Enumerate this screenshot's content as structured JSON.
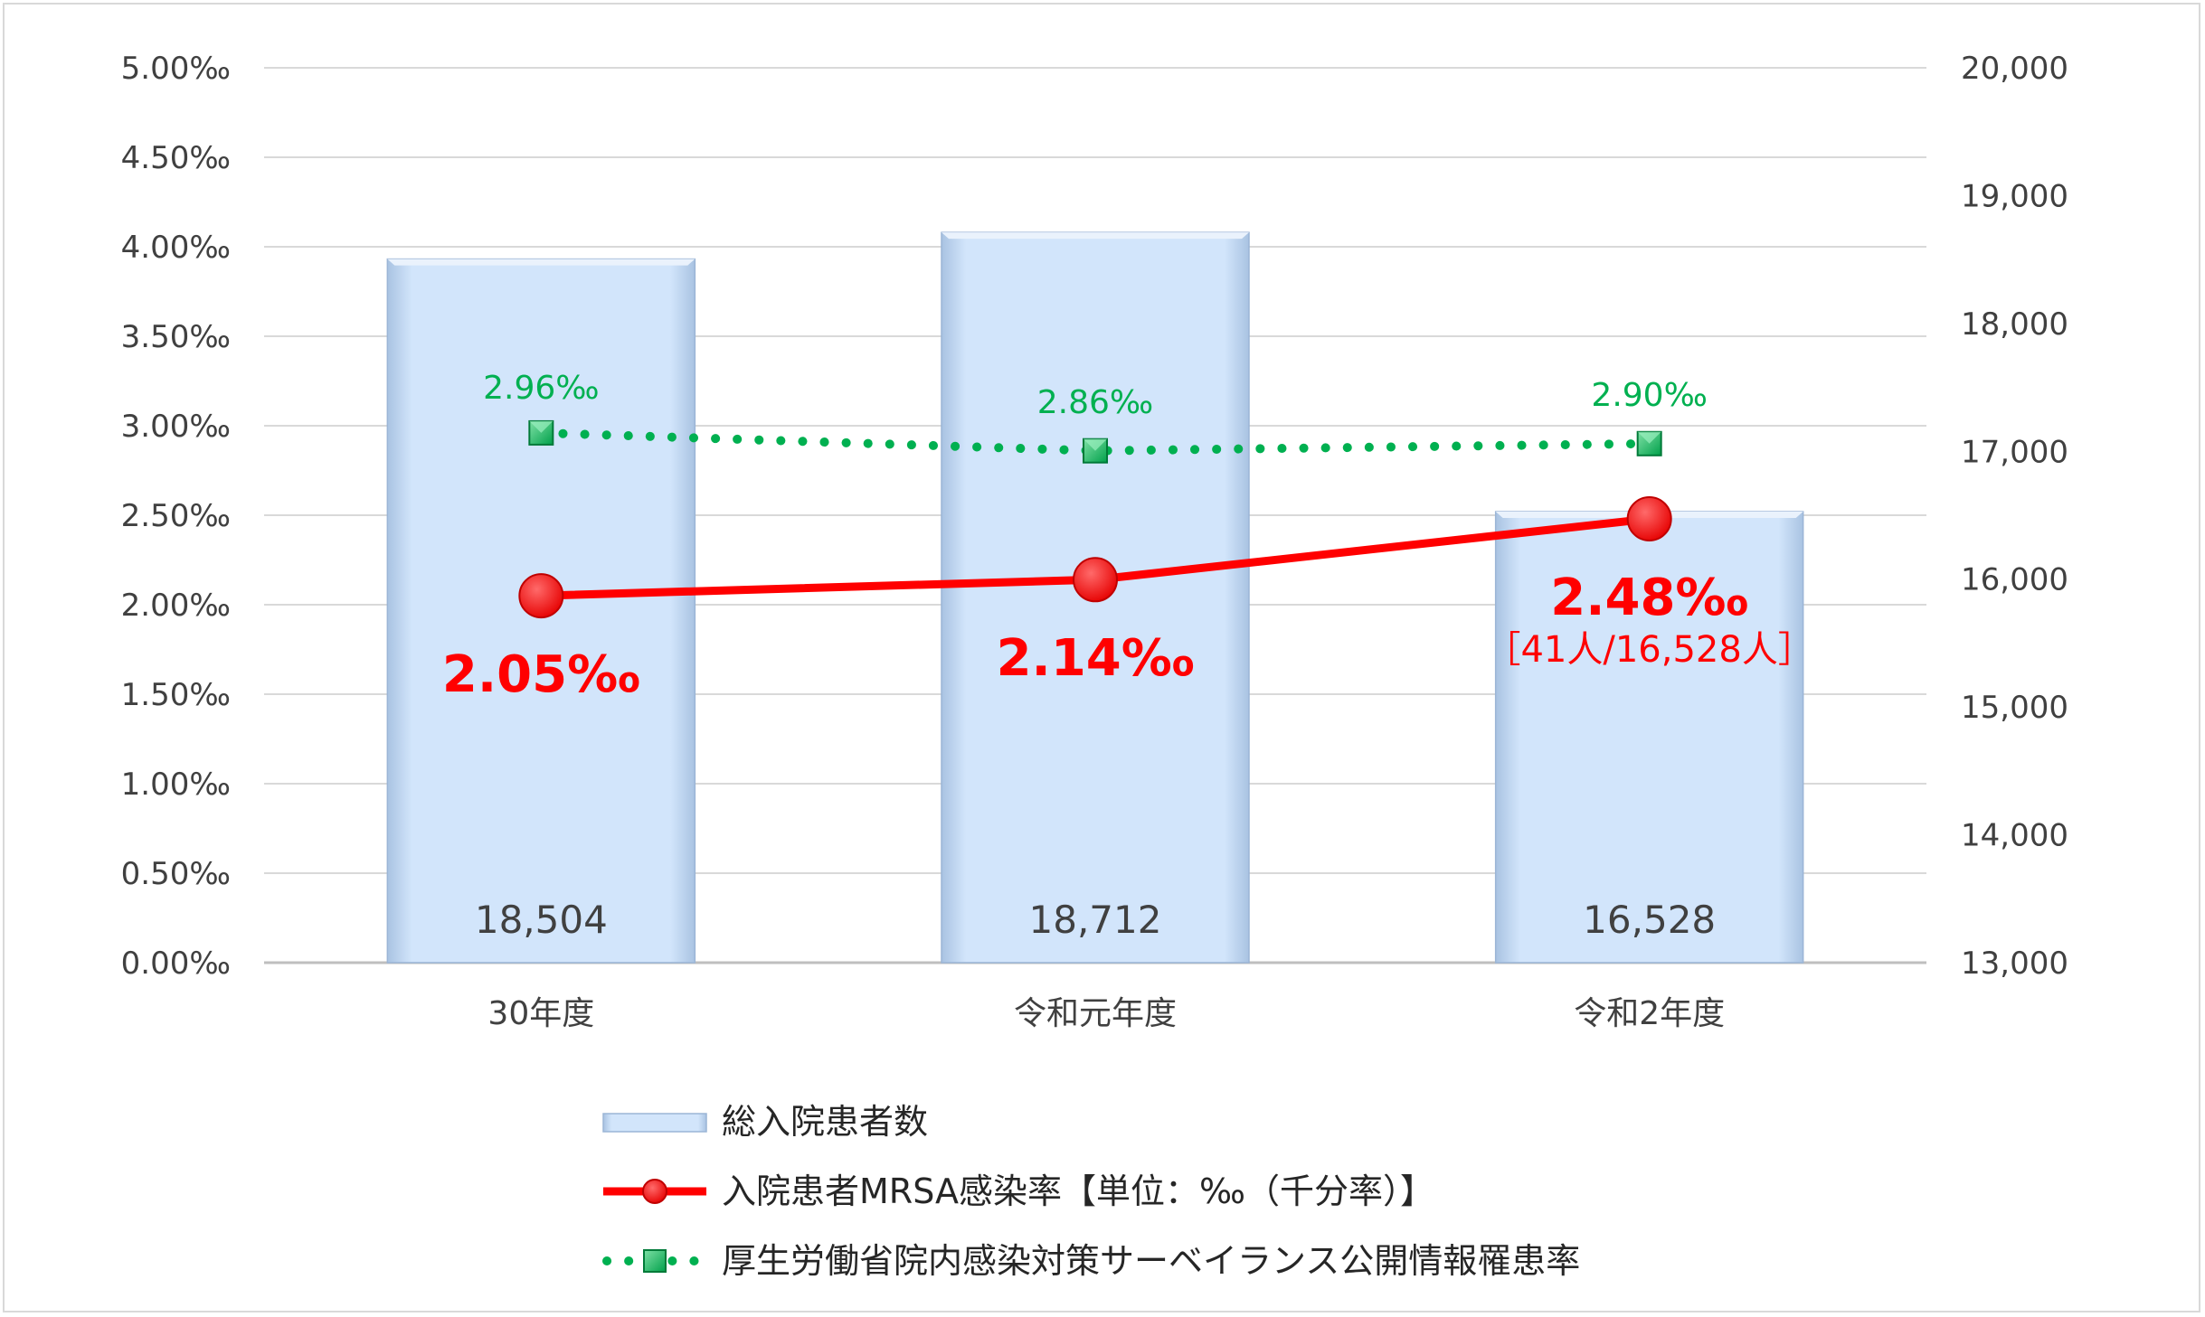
{
  "chart_data": {
    "type": "bar+line",
    "categories": [
      "30年度",
      "令和元年度",
      "令和2年度"
    ],
    "left_axis": {
      "ticks": [
        "0.00‰",
        "0.50‰",
        "1.00‰",
        "1.50‰",
        "2.00‰",
        "2.50‰",
        "3.00‰",
        "3.50‰",
        "4.00‰",
        "4.50‰",
        "5.00‰"
      ],
      "ylim": [
        0,
        5
      ]
    },
    "right_axis": {
      "ticks": [
        "13,000",
        "14,000",
        "15,000",
        "16,000",
        "17,000",
        "18,000",
        "19,000",
        "20,000"
      ],
      "ylim": [
        13000,
        20000
      ]
    },
    "grid": true,
    "legend_position": "bottom",
    "series": [
      {
        "name": "総入院患者数",
        "kind": "bar",
        "axis": "right",
        "values": [
          18504,
          18712,
          16528
        ],
        "labels": [
          "18,504",
          "18,712",
          "16,528"
        ],
        "color": "#cfe2f8"
      },
      {
        "name": "入院患者MRSA感染率【単位：‰（千分率）】",
        "kind": "line",
        "axis": "left",
        "values": [
          2.05,
          2.14,
          2.48
        ],
        "labels": [
          "2.05‰",
          "2.14‰",
          "2.48‰"
        ],
        "extra_label": "［41人/16,528人］",
        "color": "#ff0000"
      },
      {
        "name": "厚生労働省院内感染対策サーベイランス公開情報罹患率",
        "kind": "line-dotted",
        "axis": "left",
        "values": [
          2.96,
          2.86,
          2.9
        ],
        "labels": [
          "2.96‰",
          "2.86‰",
          "2.90‰"
        ],
        "color": "#00b050"
      }
    ]
  }
}
